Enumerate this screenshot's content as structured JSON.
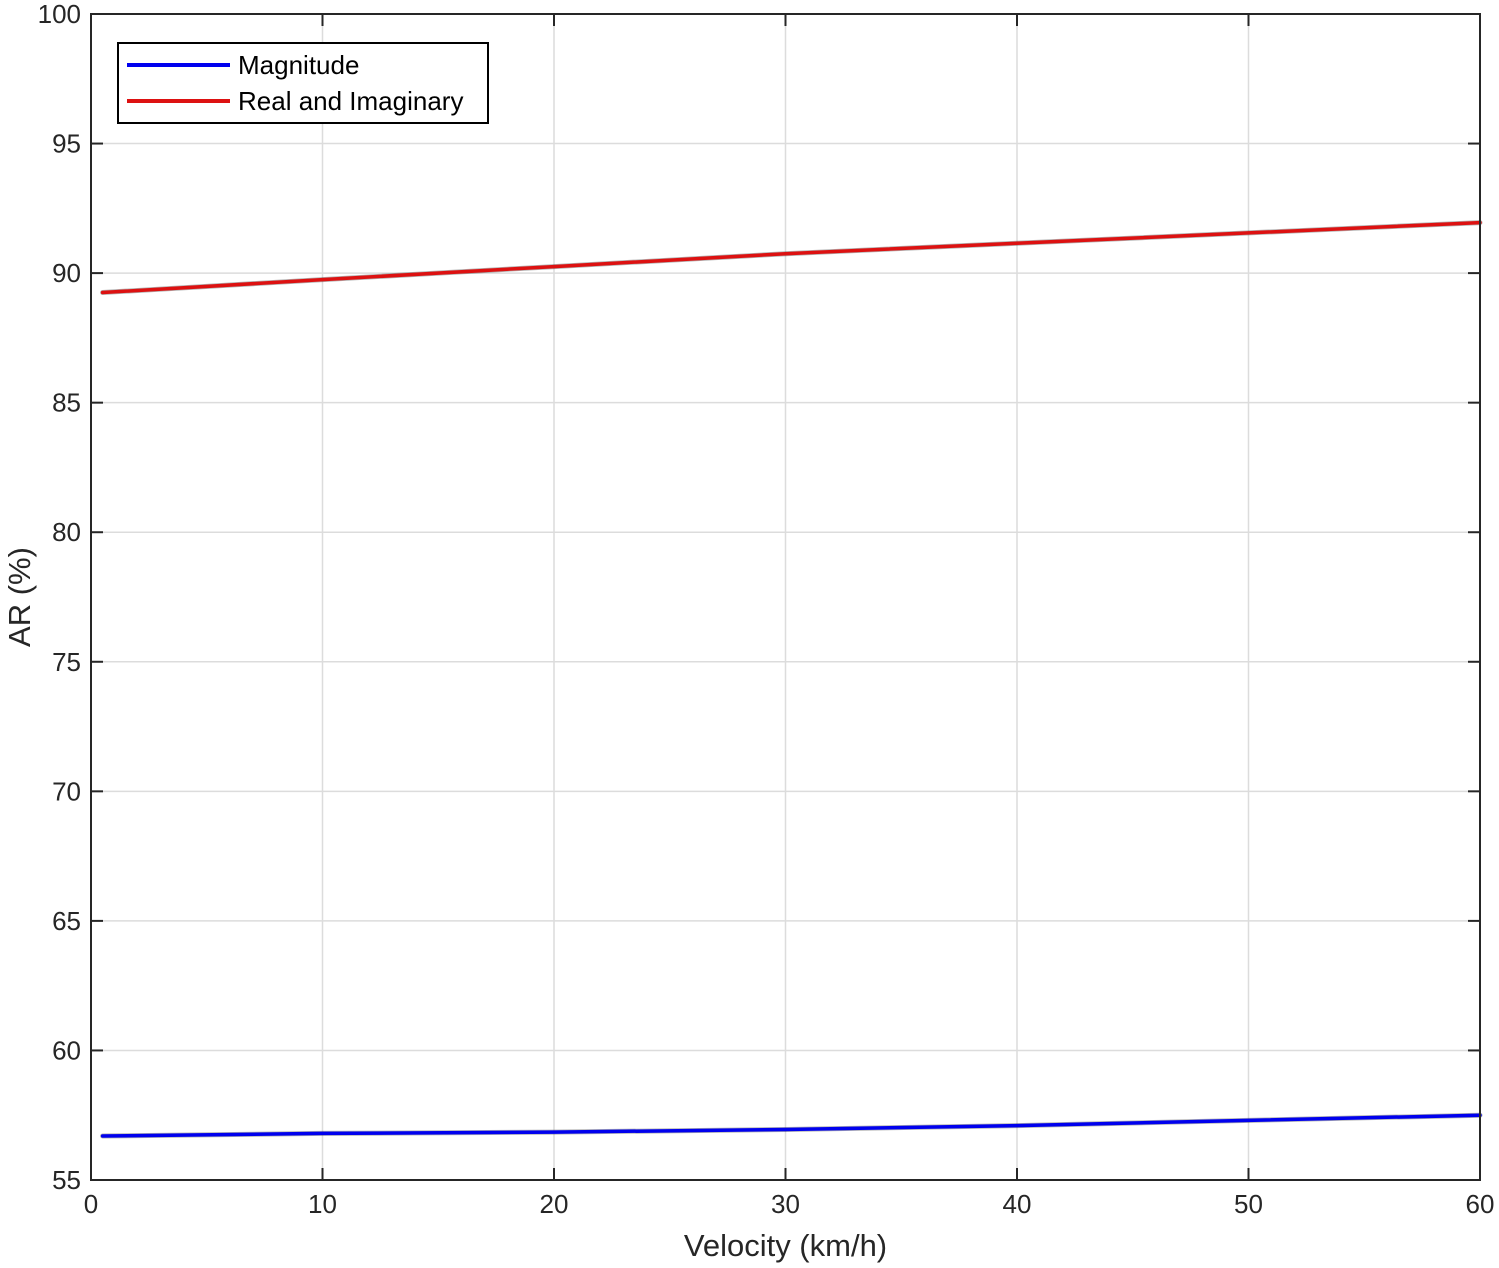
{
  "chart_data": {
    "type": "line",
    "title": "",
    "xlabel": "Velocity (km/h)",
    "ylabel": "AR (%)",
    "xlim": [
      0,
      60
    ],
    "ylim": [
      55,
      100
    ],
    "xticks": [
      0,
      10,
      20,
      30,
      40,
      50,
      60
    ],
    "yticks": [
      55,
      60,
      65,
      70,
      75,
      80,
      85,
      90,
      95,
      100
    ],
    "xtick_labels": [
      "0",
      "10",
      "20",
      "30",
      "40",
      "50",
      "60"
    ],
    "ytick_labels": [
      "55",
      "60",
      "65",
      "70",
      "75",
      "80",
      "85",
      "90",
      "95",
      "100"
    ],
    "grid": true,
    "legend_position": "top-left",
    "series": [
      {
        "name": "Magnitude",
        "color": "#0000ee",
        "x": [
          0.5,
          10,
          20,
          30,
          40,
          50,
          60
        ],
        "y": [
          56.7,
          56.8,
          56.85,
          56.95,
          57.1,
          57.3,
          57.5
        ]
      },
      {
        "name": "Real and Imaginary",
        "color": "#dd1111",
        "x": [
          0.5,
          10,
          20,
          30,
          40,
          50,
          60
        ],
        "y": [
          89.25,
          89.75,
          90.25,
          90.75,
          91.15,
          91.55,
          91.95
        ]
      }
    ]
  }
}
